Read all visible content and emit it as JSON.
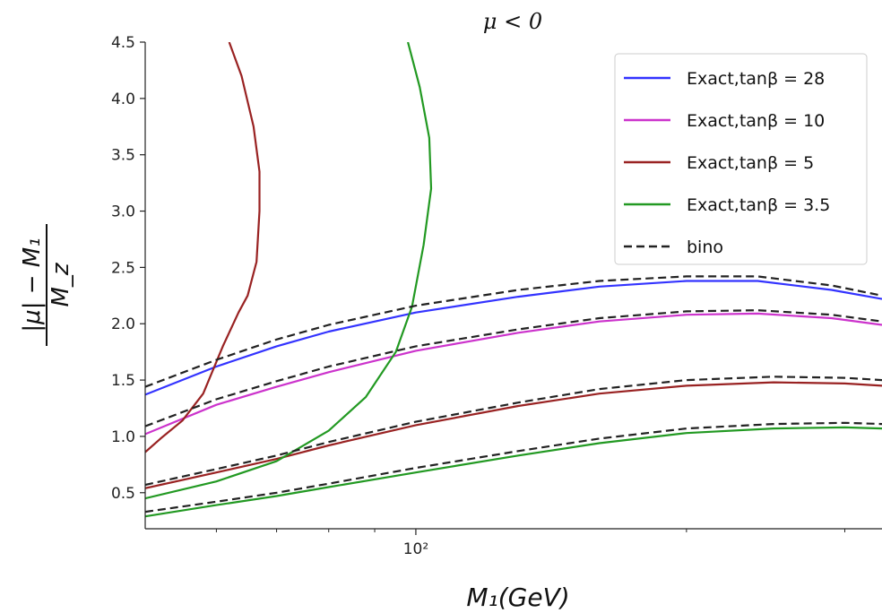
{
  "chart_data": {
    "type": "line",
    "title": "μ < 0",
    "xlabel": "M₁(GeV)",
    "ylabel_numerator": "|μ| − M₁",
    "ylabel_denominator": "M_z",
    "xscale": "log",
    "xlim": [
      50,
      330
    ],
    "ylim": [
      0.18,
      4.5
    ],
    "x_major_ticks": [
      {
        "value": 100,
        "label": "10²"
      }
    ],
    "x_minor_ticks": [
      60,
      70,
      80,
      90,
      200,
      300
    ],
    "y_ticks": [
      {
        "value": 0.5,
        "label": "0.5"
      },
      {
        "value": 1.0,
        "label": "1.0"
      },
      {
        "value": 1.5,
        "label": "1.5"
      },
      {
        "value": 2.0,
        "label": "2.0"
      },
      {
        "value": 2.5,
        "label": "2.5"
      },
      {
        "value": 3.0,
        "label": "3.0"
      },
      {
        "value": 3.5,
        "label": "3.5"
      },
      {
        "value": 4.0,
        "label": "4.0"
      },
      {
        "value": 4.5,
        "label": "4.5"
      }
    ],
    "legend_position": "top-right",
    "legend": [
      {
        "label": "Exact,tanβ = 28",
        "color": "#3333ff",
        "dashed": false
      },
      {
        "label": "Exact,tanβ = 10",
        "color": "#cc33cc",
        "dashed": false
      },
      {
        "label": "Exact,tanβ = 5",
        "color": "#992222",
        "dashed": false
      },
      {
        "label": "Exact,tanβ = 3.5",
        "color": "#229922",
        "dashed": false
      },
      {
        "label": "bino",
        "color": "#222222",
        "dashed": true
      }
    ],
    "series": [
      {
        "name": "Exact,tanβ = 28",
        "color": "#3333ff",
        "dashed": false,
        "points": [
          [
            50,
            1.37
          ],
          [
            60,
            1.62
          ],
          [
            70,
            1.8
          ],
          [
            80,
            1.93
          ],
          [
            100,
            2.1
          ],
          [
            130,
            2.24
          ],
          [
            160,
            2.33
          ],
          [
            200,
            2.38
          ],
          [
            240,
            2.38
          ],
          [
            290,
            2.3
          ],
          [
            330,
            2.22
          ]
        ]
      },
      {
        "name": "Exact,tanβ = 10",
        "color": "#cc33cc",
        "dashed": false,
        "points": [
          [
            50,
            1.02
          ],
          [
            60,
            1.28
          ],
          [
            70,
            1.44
          ],
          [
            80,
            1.57
          ],
          [
            100,
            1.76
          ],
          [
            130,
            1.92
          ],
          [
            160,
            2.02
          ],
          [
            200,
            2.08
          ],
          [
            240,
            2.09
          ],
          [
            290,
            2.05
          ],
          [
            330,
            1.99
          ]
        ]
      },
      {
        "name": "Exact,tanβ = 5",
        "color": "#992222",
        "dashed": false,
        "points": [
          [
            50,
            0.54
          ],
          [
            60,
            0.68
          ],
          [
            70,
            0.8
          ],
          [
            80,
            0.92
          ],
          [
            100,
            1.1
          ],
          [
            130,
            1.27
          ],
          [
            160,
            1.38
          ],
          [
            200,
            1.45
          ],
          [
            250,
            1.48
          ],
          [
            300,
            1.47
          ],
          [
            330,
            1.45
          ]
        ]
      },
      {
        "name": "Exact,tanβ = 3.5",
        "color": "#229922",
        "dashed": false,
        "points": [
          [
            50,
            0.29
          ],
          [
            60,
            0.39
          ],
          [
            70,
            0.47
          ],
          [
            80,
            0.55
          ],
          [
            100,
            0.68
          ],
          [
            130,
            0.83
          ],
          [
            160,
            0.94
          ],
          [
            200,
            1.03
          ],
          [
            250,
            1.07
          ],
          [
            300,
            1.08
          ],
          [
            330,
            1.07
          ]
        ]
      },
      {
        "name": "Exact,tanβ = 5",
        "color": "#992222",
        "dashed": false,
        "points": [
          [
            50,
            0.86
          ],
          [
            52,
            0.98
          ],
          [
            55,
            1.14
          ],
          [
            58,
            1.38
          ],
          [
            61,
            1.8
          ],
          [
            63.5,
            2.1
          ],
          [
            65,
            2.25
          ],
          [
            66.5,
            2.55
          ],
          [
            67,
            3.0
          ],
          [
            67,
            3.35
          ],
          [
            66,
            3.75
          ],
          [
            64,
            4.2
          ],
          [
            62,
            4.5
          ]
        ]
      },
      {
        "name": "Exact,tanβ = 3.5",
        "color": "#229922",
        "dashed": false,
        "points": [
          [
            50,
            0.45
          ],
          [
            60,
            0.6
          ],
          [
            70,
            0.78
          ],
          [
            80,
            1.05
          ],
          [
            88,
            1.35
          ],
          [
            95,
            1.75
          ],
          [
            99,
            2.15
          ],
          [
            102,
            2.7
          ],
          [
            104,
            3.2
          ],
          [
            103.5,
            3.65
          ],
          [
            101,
            4.1
          ],
          [
            98,
            4.5
          ]
        ]
      },
      {
        "name": "bino",
        "color": "#222222",
        "dashed": true,
        "points": [
          [
            50,
            1.44
          ],
          [
            60,
            1.68
          ],
          [
            70,
            1.86
          ],
          [
            80,
            1.99
          ],
          [
            100,
            2.16
          ],
          [
            130,
            2.3
          ],
          [
            160,
            2.38
          ],
          [
            200,
            2.42
          ],
          [
            240,
            2.42
          ],
          [
            290,
            2.34
          ],
          [
            330,
            2.25
          ]
        ]
      },
      {
        "name": "bino",
        "color": "#222222",
        "dashed": true,
        "points": [
          [
            50,
            1.09
          ],
          [
            60,
            1.33
          ],
          [
            70,
            1.49
          ],
          [
            80,
            1.62
          ],
          [
            100,
            1.8
          ],
          [
            130,
            1.95
          ],
          [
            160,
            2.05
          ],
          [
            200,
            2.11
          ],
          [
            240,
            2.12
          ],
          [
            290,
            2.08
          ],
          [
            330,
            2.02
          ]
        ]
      },
      {
        "name": "bino",
        "color": "#222222",
        "dashed": true,
        "points": [
          [
            50,
            0.57
          ],
          [
            60,
            0.71
          ],
          [
            70,
            0.83
          ],
          [
            80,
            0.95
          ],
          [
            100,
            1.13
          ],
          [
            130,
            1.3
          ],
          [
            160,
            1.42
          ],
          [
            200,
            1.5
          ],
          [
            250,
            1.53
          ],
          [
            300,
            1.52
          ],
          [
            330,
            1.5
          ]
        ]
      },
      {
        "name": "bino",
        "color": "#222222",
        "dashed": true,
        "points": [
          [
            50,
            0.33
          ],
          [
            60,
            0.42
          ],
          [
            70,
            0.5
          ],
          [
            80,
            0.58
          ],
          [
            100,
            0.72
          ],
          [
            130,
            0.87
          ],
          [
            160,
            0.98
          ],
          [
            200,
            1.07
          ],
          [
            250,
            1.11
          ],
          [
            300,
            1.12
          ],
          [
            330,
            1.11
          ]
        ]
      }
    ]
  }
}
